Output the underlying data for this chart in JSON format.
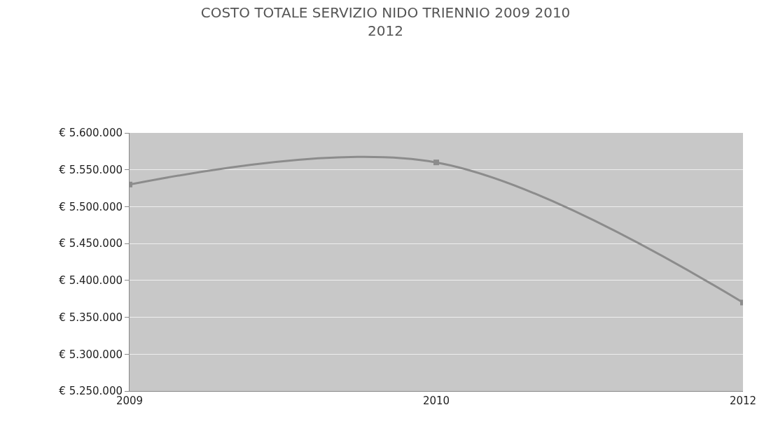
{
  "chart_data": {
    "type": "line",
    "title": "COSTO TOTALE SERVIZIO NIDO TRIENNIO 2009 2010 2012",
    "categories": [
      "2009",
      "2010",
      "2012"
    ],
    "series": [
      {
        "color": "#8c8c8c",
        "values": [
          5530000,
          5560000,
          5370000
        ]
      }
    ],
    "ylim": [
      5250000,
      5600000
    ],
    "yticks": [
      {
        "value": 5250000,
        "label": "€ 5.250.000"
      },
      {
        "value": 5300000,
        "label": "€ 5.300.000"
      },
      {
        "value": 5350000,
        "label": "€ 5.350.000"
      },
      {
        "value": 5400000,
        "label": "€ 5.400.000"
      },
      {
        "value": 5450000,
        "label": "€ 5.450.000"
      },
      {
        "value": 5500000,
        "label": "€ 5.500.000"
      },
      {
        "value": 5550000,
        "label": "€ 5.550.000"
      },
      {
        "value": 5600000,
        "label": "€ 5.600.000"
      }
    ],
    "grid": "y",
    "marker": "square",
    "line_style": "solid",
    "legend": false
  }
}
